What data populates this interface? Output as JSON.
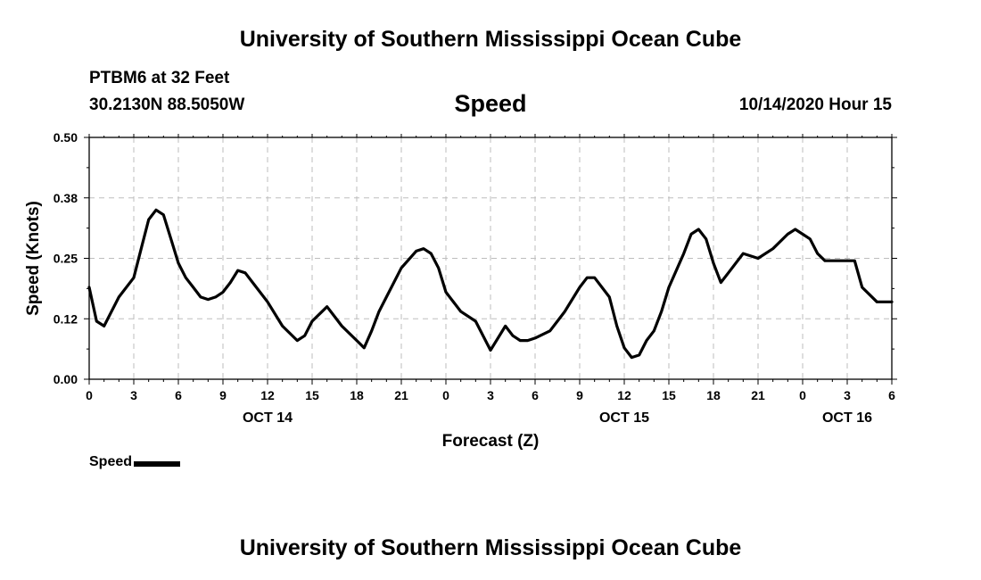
{
  "header": {
    "title": "University of Southern Mississippi Ocean Cube",
    "station": "PTBM6 at 32 Feet",
    "coordinates": "30.2130N 88.5050W",
    "variable": "Speed",
    "datetime": "10/14/2020 Hour 15"
  },
  "footer": {
    "title": "University of Southern Mississippi Ocean Cube"
  },
  "legend": {
    "label": "Speed"
  },
  "chart_data": {
    "type": "line",
    "title": "Speed",
    "xlabel": "Forecast (Z)",
    "ylabel": "Speed (Knots)",
    "ylim": [
      0,
      0.5
    ],
    "yticks": [
      "0.00",
      "0.12",
      "0.25",
      "0.38",
      "0.50"
    ],
    "xlim": [
      0,
      54
    ],
    "xticks": [
      "0",
      "3",
      "6",
      "9",
      "12",
      "15",
      "18",
      "21",
      "0",
      "3",
      "6",
      "9",
      "12",
      "15",
      "18",
      "21",
      "0",
      "3",
      "6"
    ],
    "date_labels": [
      {
        "hour": 12,
        "label": "OCT 14"
      },
      {
        "hour": 36,
        "label": "OCT 15"
      },
      {
        "hour": 51,
        "label": "OCT 16"
      }
    ],
    "grid": true,
    "series": [
      {
        "name": "Speed",
        "x": [
          0,
          0.5,
          1,
          2,
          3,
          3.5,
          4,
          4.5,
          5,
          5.5,
          6,
          6.5,
          7,
          7.5,
          8,
          8.5,
          9,
          9.5,
          10,
          10.5,
          11,
          12,
          13,
          14,
          14.5,
          15,
          16,
          16.5,
          17,
          18,
          18.5,
          19,
          19.5,
          20,
          21,
          22,
          22.5,
          23,
          23.5,
          24,
          25,
          26,
          27,
          28,
          28.5,
          29,
          29.5,
          30,
          31,
          31.5,
          32,
          33,
          33.5,
          34,
          35,
          35.5,
          36,
          36.5,
          37,
          37.5,
          38,
          38.5,
          39,
          40,
          40.5,
          41,
          41.5,
          42,
          42.5,
          43,
          44,
          45,
          46,
          47,
          47.5,
          48,
          48.5,
          49,
          49.5,
          50,
          51,
          51.5,
          52,
          53,
          54
        ],
        "values": [
          0.19,
          0.12,
          0.11,
          0.17,
          0.21,
          0.27,
          0.33,
          0.35,
          0.34,
          0.29,
          0.24,
          0.21,
          0.19,
          0.17,
          0.165,
          0.17,
          0.18,
          0.2,
          0.225,
          0.22,
          0.2,
          0.16,
          0.11,
          0.08,
          0.09,
          0.12,
          0.15,
          0.13,
          0.11,
          0.08,
          0.065,
          0.1,
          0.14,
          0.17,
          0.23,
          0.265,
          0.27,
          0.26,
          0.23,
          0.18,
          0.14,
          0.12,
          0.06,
          0.11,
          0.09,
          0.08,
          0.08,
          0.085,
          0.1,
          0.12,
          0.14,
          0.19,
          0.21,
          0.21,
          0.17,
          0.11,
          0.065,
          0.045,
          0.05,
          0.08,
          0.1,
          0.14,
          0.19,
          0.26,
          0.3,
          0.31,
          0.29,
          0.24,
          0.2,
          0.22,
          0.26,
          0.25,
          0.27,
          0.3,
          0.31,
          0.3,
          0.29,
          0.26,
          0.245,
          0.245,
          0.245,
          0.245,
          0.19,
          0.16,
          0.16
        ]
      }
    ]
  }
}
